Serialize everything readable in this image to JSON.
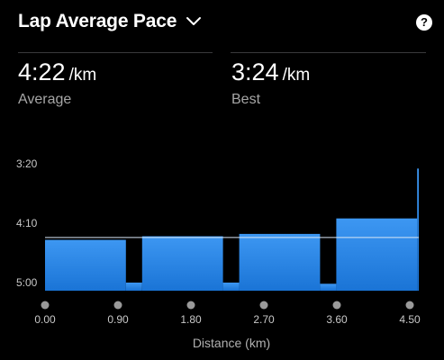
{
  "header": {
    "title": "Lap Average Pace",
    "help_glyph": "?"
  },
  "stats": {
    "average": {
      "value": "4:22",
      "unit": "/km",
      "label": "Average"
    },
    "best": {
      "value": "3:24",
      "unit": "/km",
      "label": "Best"
    }
  },
  "chart_data": {
    "type": "bar",
    "xlabel": "Distance (km)",
    "y_inverted": true,
    "y_ticks_sec": [
      200,
      250,
      300
    ],
    "y_tick_labels": [
      "3:20",
      "4:10",
      "5:00"
    ],
    "x_ticks": [
      0.0,
      0.9,
      1.8,
      2.7,
      3.6,
      4.5
    ],
    "x_tick_labels": [
      "0.00",
      "0.90",
      "1.80",
      "2.70",
      "3.60",
      "4.50"
    ],
    "laps": [
      {
        "start": 0.0,
        "end": 1.0,
        "pace_sec": 264
      },
      {
        "start": 1.0,
        "end": 1.2,
        "pace_sec": 300
      },
      {
        "start": 1.2,
        "end": 2.2,
        "pace_sec": 261
      },
      {
        "start": 2.2,
        "end": 2.4,
        "pace_sec": 300
      },
      {
        "start": 2.4,
        "end": 3.4,
        "pace_sec": 259
      },
      {
        "start": 3.4,
        "end": 3.6,
        "pace_sec": 301
      },
      {
        "start": 3.6,
        "end": 4.6,
        "pace_sec": 246
      },
      {
        "start": 4.6,
        "end": 4.62,
        "pace_sec": 204
      }
    ],
    "average_line_sec": 262,
    "colors": {
      "bar": "#1e7fe0",
      "bar_top": "#3d97f2",
      "avg_line": "#d8e6f5",
      "dot": "#9a9a9a"
    }
  }
}
